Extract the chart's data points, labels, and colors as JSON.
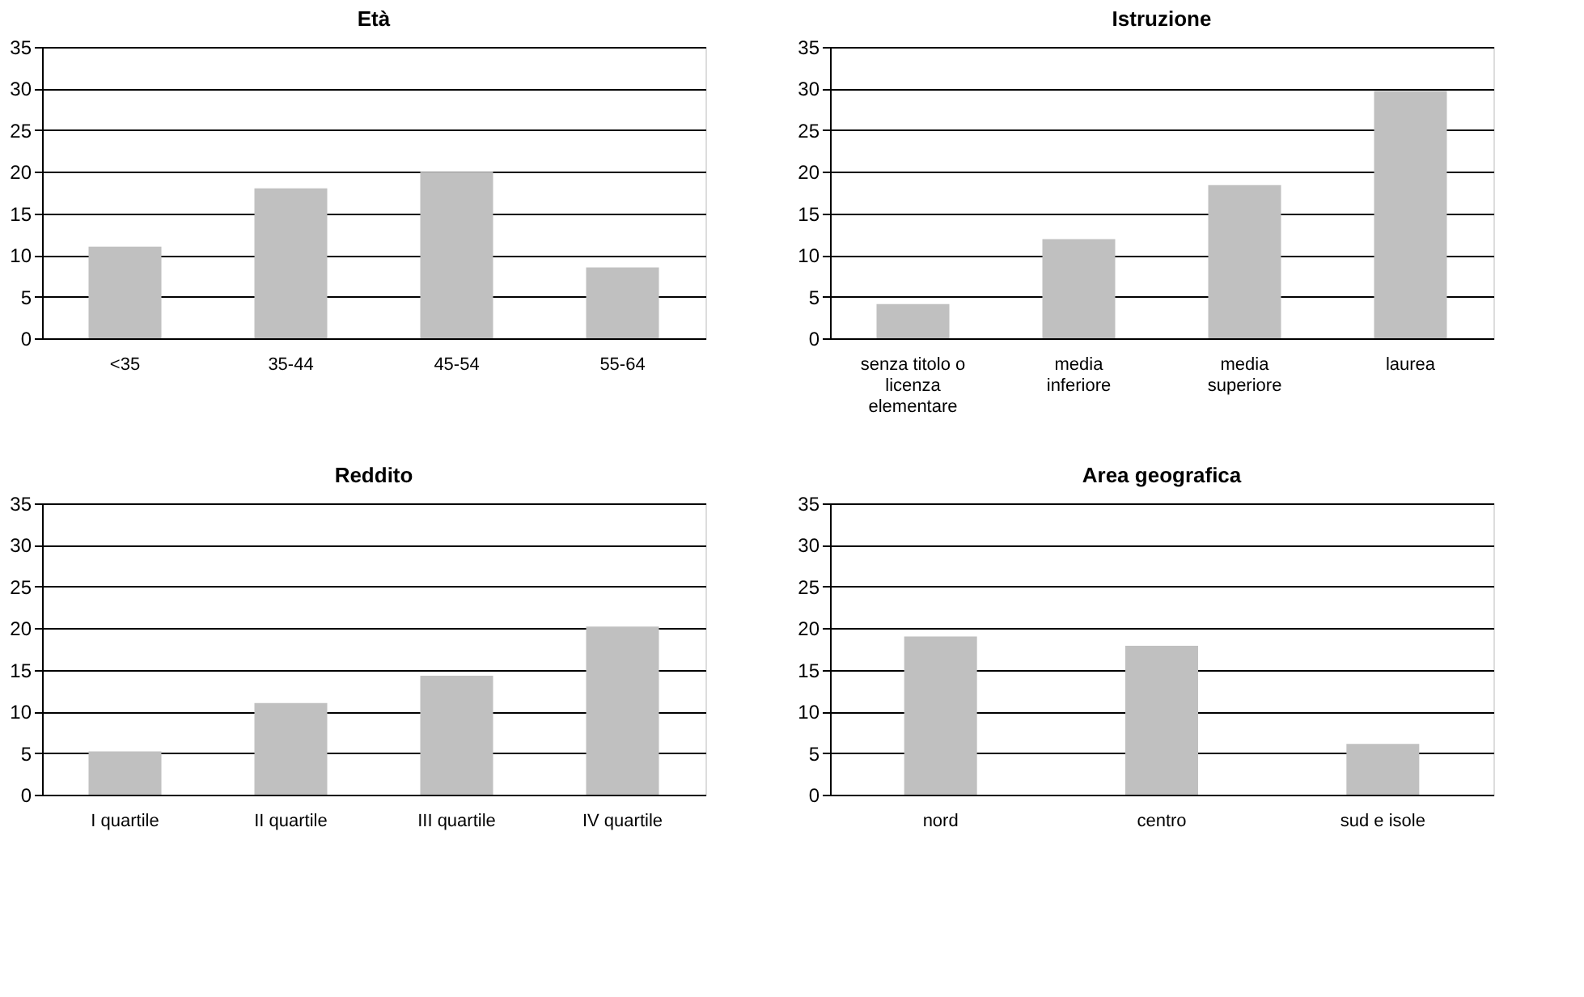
{
  "chart_data": [
    {
      "type": "bar",
      "title": "Età",
      "categories": [
        "<35",
        "35-44",
        "45-54",
        "55-64"
      ],
      "values": [
        11,
        18,
        20,
        8.5
      ],
      "color": "#c0c0c0",
      "ylim": [
        0,
        35
      ],
      "yticks": [
        0,
        5,
        10,
        15,
        20,
        25,
        30,
        35
      ],
      "grid": "y"
    },
    {
      "type": "bar",
      "title": "Istruzione",
      "categories": [
        "senza titolo o licenza elementare",
        "media inferiore",
        "media superiore",
        "laurea"
      ],
      "values": [
        4.1,
        11.9,
        18.4,
        29.7
      ],
      "color": "#c0c0c0",
      "ylim": [
        0,
        35
      ],
      "yticks": [
        0,
        5,
        10,
        15,
        20,
        25,
        30,
        35
      ],
      "grid": "y"
    },
    {
      "type": "bar",
      "title": "Reddito",
      "categories": [
        "I quartile",
        "II quartile",
        "III quartile",
        "IV quartile"
      ],
      "values": [
        5.2,
        11,
        14.3,
        20.2
      ],
      "color": "#c0c0c0",
      "ylim": [
        0,
        35
      ],
      "yticks": [
        0,
        5,
        10,
        15,
        20,
        25,
        30,
        35
      ],
      "grid": "y"
    },
    {
      "type": "bar",
      "title": "Area geografica",
      "categories": [
        "nord",
        "centro",
        "sud e isole"
      ],
      "values": [
        19,
        17.9,
        6.1
      ],
      "color": "#c0c0c0",
      "ylim": [
        0,
        35
      ],
      "yticks": [
        0,
        5,
        10,
        15,
        20,
        25,
        30,
        35
      ],
      "grid": "y"
    }
  ]
}
